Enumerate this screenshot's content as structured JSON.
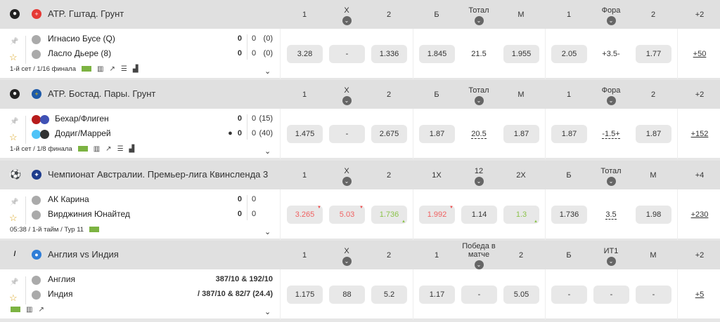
{
  "colors": {
    "header_bg": "#e0e0e0",
    "odds_bg": "#e8e8e8",
    "odds_down": "#f06060",
    "odds_up": "#8bc34a",
    "favorite_star": "#d9a520"
  },
  "sections": [
    {
      "sport_icon": "tennis-ball-icon",
      "flag": "switzerland-flag",
      "flag_color": "#e53935",
      "flag_glyph": "+",
      "title": "ATP. Гштад. Грунт",
      "headers": [
        {
          "t": "1"
        },
        {
          "t": "X",
          "chev": true
        },
        {
          "t": "2"
        },
        {
          "t": "Б"
        },
        {
          "t": "Тотал",
          "chev": true
        },
        {
          "t": "М"
        },
        {
          "t": "1"
        },
        {
          "t": "Фора",
          "chev": true
        },
        {
          "t": "2"
        },
        {
          "t": "+2"
        }
      ],
      "teams": [
        {
          "name": "Игнасио Бусе (Q)",
          "score": "0",
          "s2": "0",
          "s3": "(0)"
        },
        {
          "name": "Ласло Дьере (8)",
          "score": "0",
          "s2": "0",
          "s3": "(0)"
        }
      ],
      "info": "1-й сет / 1/16 финала",
      "icons": [
        "field",
        "stats",
        "chart",
        "lineup",
        "podium"
      ],
      "odds": [
        {
          "v": "3.28"
        },
        {
          "v": "-"
        },
        {
          "v": "1.336"
        },
        {
          "v": "1.845"
        },
        {
          "v": "21.5",
          "plain": true
        },
        {
          "v": "1.955"
        },
        {
          "v": "2.05"
        },
        {
          "v": "+3.5-",
          "plain": true
        },
        {
          "v": "1.77"
        }
      ],
      "more": "+50"
    },
    {
      "sport_icon": "tennis-ball-icon",
      "flag": "sweden-flag",
      "flag_color": "#1e5aa8",
      "flag_glyph": "+",
      "title": "ATP. Бостад. Пары. Грунт",
      "headers": [
        {
          "t": "1"
        },
        {
          "t": "X",
          "chev": true
        },
        {
          "t": "2"
        },
        {
          "t": "Б"
        },
        {
          "t": "Тотал",
          "chev": true
        },
        {
          "t": "М"
        },
        {
          "t": "1"
        },
        {
          "t": "Фора",
          "chev": true
        },
        {
          "t": "2"
        },
        {
          "t": "+2"
        }
      ],
      "teams": [
        {
          "name": "Бехар/Флиген",
          "score": "0",
          "s2": "0",
          "s3": "(15)"
        },
        {
          "name": "Додиг/Маррей",
          "score": "0",
          "s2": "0",
          "s3": "(40)",
          "serve": true
        }
      ],
      "info": "1-й сет / 1/8 финала",
      "icons": [
        "field",
        "stats",
        "chart",
        "lineup",
        "podium"
      ],
      "odds": [
        {
          "v": "1.475"
        },
        {
          "v": "-"
        },
        {
          "v": "2.675"
        },
        {
          "v": "1.87"
        },
        {
          "v": "20.5",
          "plain": true,
          "dash": true
        },
        {
          "v": "1.87"
        },
        {
          "v": "1.87"
        },
        {
          "v": "-1.5+",
          "plain": true,
          "dash": true
        },
        {
          "v": "1.87"
        }
      ],
      "more": "+152"
    },
    {
      "sport_icon": "soccer-ball-icon",
      "flag": "australia-flag",
      "flag_color": "#1e3c8c",
      "flag_glyph": "✦",
      "title": "Чемпионат Австралии. Премьер-лига Квинсленда 3",
      "headers": [
        {
          "t": "1"
        },
        {
          "t": "X",
          "chev": true
        },
        {
          "t": "2"
        },
        {
          "t": "1X"
        },
        {
          "t": "12",
          "chev": true
        },
        {
          "t": "2X"
        },
        {
          "t": "Б"
        },
        {
          "t": "Тотал",
          "chev": true
        },
        {
          "t": "М"
        },
        {
          "t": "+4"
        }
      ],
      "teams": [
        {
          "name": "АК Карина",
          "score": "0",
          "s2": "0",
          "s3": ""
        },
        {
          "name": "Вирджиния Юнайтед",
          "score": "0",
          "s2": "0",
          "s3": ""
        }
      ],
      "info": "05:38 / 1-й тайм / Тур 11",
      "icons": [
        "field"
      ],
      "odds": [
        {
          "v": "3.265",
          "trend": "down"
        },
        {
          "v": "5.03",
          "trend": "down"
        },
        {
          "v": "1.736",
          "trend": "up"
        },
        {
          "v": "1.992",
          "trend": "down"
        },
        {
          "v": "1.14"
        },
        {
          "v": "1.3",
          "trend": "up"
        },
        {
          "v": "1.736"
        },
        {
          "v": "3.5",
          "plain": true,
          "dash": true
        },
        {
          "v": "1.98"
        }
      ],
      "more": "+230"
    },
    {
      "sport_icon": "cricket-bat-icon",
      "flag": "world-globe",
      "flag_color": "#2e7dd7",
      "flag_glyph": "●",
      "title": "Англия vs Индия",
      "headers": [
        {
          "t": "1"
        },
        {
          "t": "X",
          "chev": true
        },
        {
          "t": "2"
        },
        {
          "t": "1"
        },
        {
          "t": "Победа в матче",
          "chev": true
        },
        {
          "t": "2"
        },
        {
          "t": "Б"
        },
        {
          "t": "ИТ1",
          "chev": true
        },
        {
          "t": "М"
        },
        {
          "t": "+2"
        }
      ],
      "teams": [
        {
          "name": "Англия",
          "score": "387/10 & 192/10",
          "s2": "",
          "s3": ""
        },
        {
          "name": "Индия",
          "score": "387/10 & 82/7 (24.4)",
          "s2": "",
          "s3": "",
          "bat": true
        }
      ],
      "info": "",
      "icons": [
        "field",
        "stats",
        "chart"
      ],
      "odds": [
        {
          "v": "1.175"
        },
        {
          "v": "88"
        },
        {
          "v": "5.2"
        },
        {
          "v": "1.17"
        },
        {
          "v": "-"
        },
        {
          "v": "5.05"
        },
        {
          "v": "-"
        },
        {
          "v": "-"
        },
        {
          "v": "-"
        }
      ],
      "more": "+5"
    }
  ]
}
